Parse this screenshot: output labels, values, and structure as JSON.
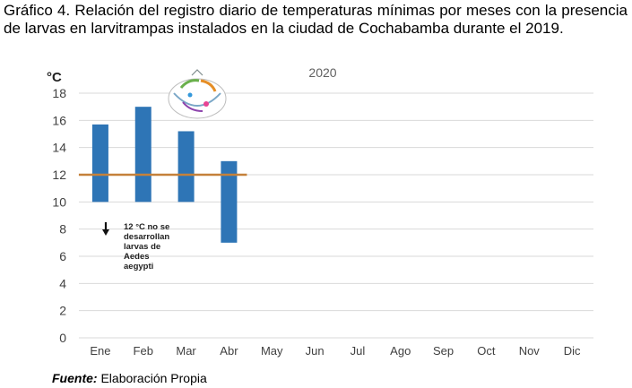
{
  "caption": "Gráfico 4. Relación del registro diario de temperaturas mínimas por meses con la presencia de larvas en larvitrampas instalados en la ciudad de Cochabamba durante el 2019.",
  "source_label": "Fuente:",
  "source_text": "Elaboración Propia",
  "colors": {
    "bar": "#2e75b6",
    "threshold": "#c5813a",
    "grid": "#d9d9d9"
  },
  "chart_data": {
    "type": "bar",
    "title": "2020",
    "ylabel": "°C",
    "xlabel": "",
    "ylim": [
      0,
      18
    ],
    "yticks": [
      0,
      2,
      4,
      6,
      8,
      10,
      12,
      14,
      16,
      18
    ],
    "grid": true,
    "categories": [
      "Ene",
      "Feb",
      "Mar",
      "Abr",
      "May",
      "Jun",
      "Jul",
      "Ago",
      "Sep",
      "Oct",
      "Nov",
      "Dic"
    ],
    "ranges": [
      {
        "category": "Ene",
        "low": 10,
        "high": 15.7
      },
      {
        "category": "Feb",
        "low": 10,
        "high": 17.0
      },
      {
        "category": "Mar",
        "low": 10,
        "high": 15.2
      },
      {
        "category": "Abr",
        "low": 7,
        "high": 13.0
      }
    ],
    "threshold": {
      "value": 12,
      "from": "Ene",
      "to": "Abr"
    },
    "annotation": [
      "12 °C no se",
      "desarrollan",
      "larvas de",
      "Aedes",
      "aegypti"
    ]
  }
}
